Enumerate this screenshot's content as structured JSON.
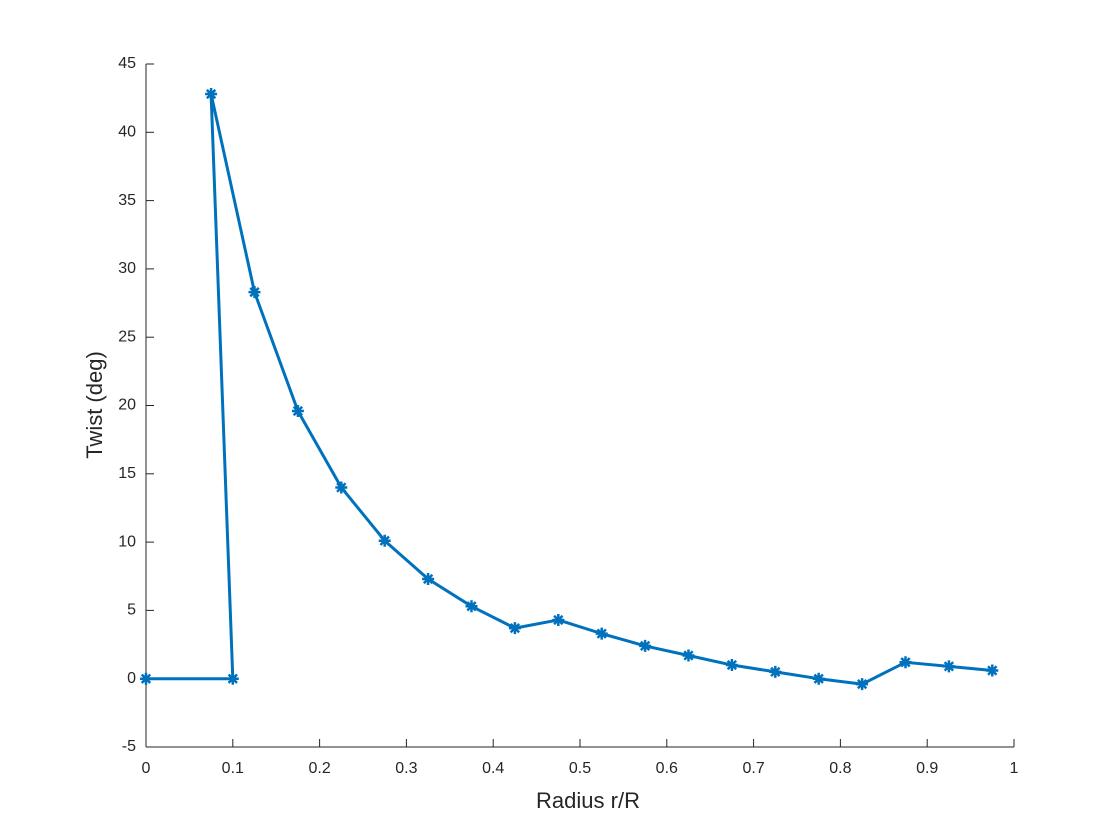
{
  "chart_data": {
    "type": "line",
    "xlabel": "Radius r/R",
    "ylabel": "Twist (deg)",
    "x": [
      0,
      0.1,
      0.075,
      0.125,
      0.175,
      0.225,
      0.275,
      0.325,
      0.375,
      0.425,
      0.475,
      0.525,
      0.575,
      0.625,
      0.675,
      0.725,
      0.775,
      0.825,
      0.875,
      0.925,
      0.975
    ],
    "series": [
      {
        "color": "#0072bd",
        "values": [
          0,
          0,
          42.8,
          28.3,
          19.6,
          14.0,
          10.1,
          7.3,
          5.3,
          3.7,
          4.3,
          3.3,
          2.4,
          1.7,
          1.0,
          0.5,
          0.0,
          -0.4,
          1.2,
          0.9,
          0.6
        ]
      }
    ],
    "xlim": [
      0,
      1
    ],
    "xticks": [
      0,
      0.1,
      0.2,
      0.3,
      0.4,
      0.5,
      0.6,
      0.7,
      0.8,
      0.9,
      1
    ],
    "ylim": [
      -5,
      45
    ],
    "yticks": [
      -5,
      0,
      5,
      10,
      15,
      20,
      25,
      30,
      35,
      40,
      45
    ],
    "grid": false
  }
}
